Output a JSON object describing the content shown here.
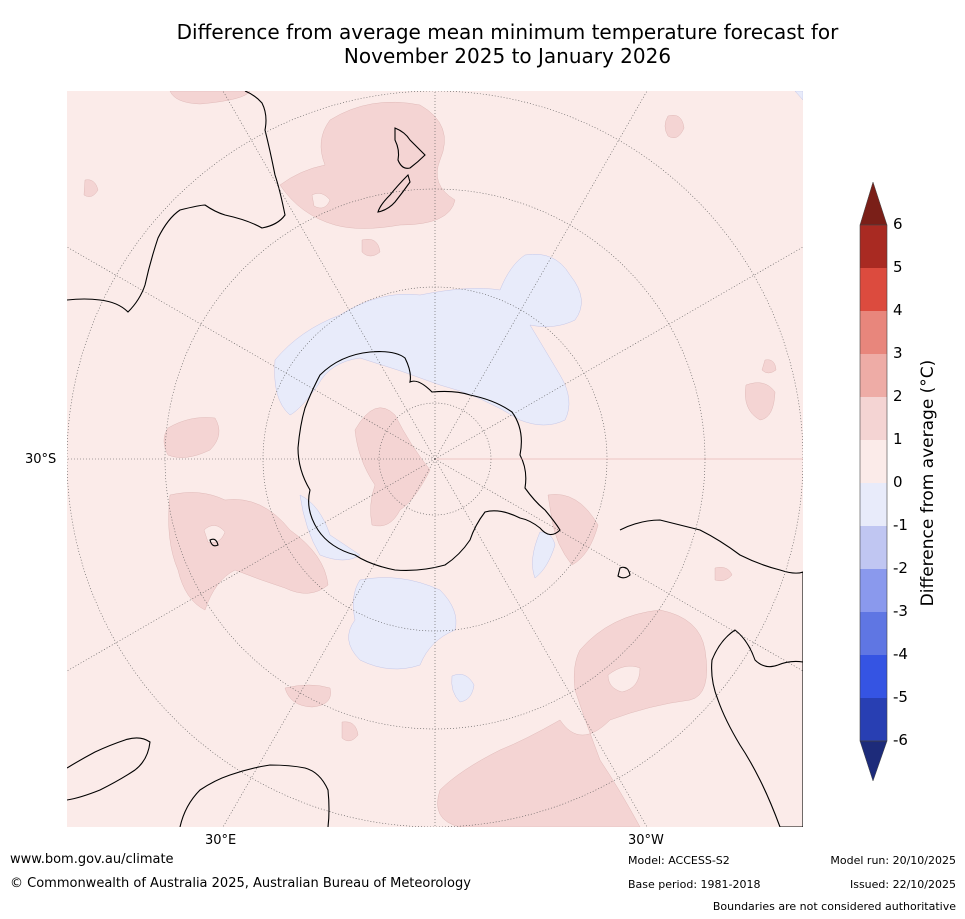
{
  "title": {
    "line1": "Difference from average mean minimum temperature forecast for",
    "line2": "November 2025 to January 2026"
  },
  "map": {
    "lat_label": "30°S",
    "lon_label_left": "30°E",
    "lon_label_right": "30°W",
    "projection": "South polar stereographic"
  },
  "colorbar": {
    "title": "Difference from average (°C)",
    "ticks": [
      "6",
      "5",
      "4",
      "3",
      "2",
      "1",
      "0",
      "-1",
      "-2",
      "-3",
      "-4",
      "-5",
      "-6"
    ],
    "colors": {
      "above_6": "#7a1f18",
      "5_to_6": "#a92a22",
      "4_to_5": "#dc4b3e",
      "3_to_4": "#e8867c",
      "2_to_3": "#eeaca6",
      "1_to_2": "#f4d4d3",
      "0_to_1": "#fbebe9",
      "-1_to_0": "#e8ebfa",
      "-2_to_-1": "#c0c6f2",
      "-3_to_-2": "#8a99ed",
      "-4_to_-3": "#5f76e3",
      "-5_to_-4": "#3554e3",
      "-6_to_-5": "#283fb3",
      "below_-6": "#1d2b7a"
    }
  },
  "footer": {
    "website": "www.bom.gov.au/climate",
    "copyright": "© Commonwealth of Australia 2025, Australian Bureau of Meteorology",
    "model": "Model: ACCESS-S2",
    "base_period": "Base period: 1981-2018",
    "model_run": "Model run: 20/10/2025",
    "issued": "Issued: 22/10/2025",
    "disclaimer": "Boundaries are not considered authoritative"
  }
}
